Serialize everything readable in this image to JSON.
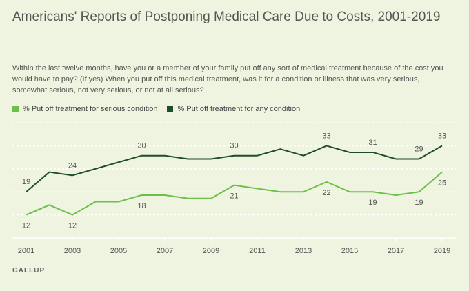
{
  "header": {
    "title": "Americans' Reports of Postponing Medical Care Due to Costs, 2001-2019",
    "question": "Within the last twelve months, have you or a member of your family put off any sort of medical treatment because of the cost you would have to pay? (If yes) When you put off this medical treatment, was it for a condition or illness that was very serious, somewhat serious, not very serious, or not at all serious?"
  },
  "source": "GALLUP",
  "chart_data": {
    "type": "line",
    "title": "Americans' Reports of Postponing Medical Care Due to Costs, 2001-2019",
    "xlabel": "",
    "ylabel": "",
    "ylim": [
      5,
      40
    ],
    "grid": true,
    "x_ticks": [
      "2001",
      "2003",
      "2005",
      "2007",
      "2009",
      "2011",
      "2013",
      "2015",
      "2017",
      "2019"
    ],
    "x": [
      2001,
      2002,
      2003,
      2004,
      2005,
      2006,
      2007,
      2008,
      2009,
      2010,
      2011,
      2012,
      2013,
      2014,
      2015,
      2016,
      2017,
      2018,
      2019
    ],
    "series": [
      {
        "name": "% Put off treatment for serious condition",
        "color": "#6cc04a",
        "values": [
          12,
          15,
          12,
          16,
          16,
          18,
          18,
          17,
          17,
          21,
          20,
          19,
          19,
          22,
          19,
          19,
          18,
          19,
          25
        ],
        "labels": [
          {
            "index": 0,
            "text": "12",
            "pos": "below"
          },
          {
            "index": 2,
            "text": "12",
            "pos": "below"
          },
          {
            "index": 5,
            "text": "18",
            "pos": "below"
          },
          {
            "index": 9,
            "text": "21",
            "pos": "below"
          },
          {
            "index": 13,
            "text": "22",
            "pos": "below"
          },
          {
            "index": 15,
            "text": "19",
            "pos": "below"
          },
          {
            "index": 17,
            "text": "19",
            "pos": "below"
          },
          {
            "index": 18,
            "text": "25",
            "pos": "below"
          }
        ]
      },
      {
        "name": "% Put off treatment for any condition",
        "color": "#1f4d2b",
        "values": [
          19,
          25,
          24,
          26,
          28,
          30,
          30,
          29,
          29,
          30,
          30,
          32,
          30,
          33,
          31,
          31,
          29,
          29,
          33
        ],
        "labels": [
          {
            "index": 0,
            "text": "19",
            "pos": "above"
          },
          {
            "index": 2,
            "text": "24",
            "pos": "above"
          },
          {
            "index": 5,
            "text": "30",
            "pos": "above"
          },
          {
            "index": 9,
            "text": "30",
            "pos": "above"
          },
          {
            "index": 13,
            "text": "33",
            "pos": "above"
          },
          {
            "index": 15,
            "text": "31",
            "pos": "above"
          },
          {
            "index": 17,
            "text": "29",
            "pos": "above"
          },
          {
            "index": 18,
            "text": "33",
            "pos": "above"
          }
        ]
      }
    ]
  }
}
